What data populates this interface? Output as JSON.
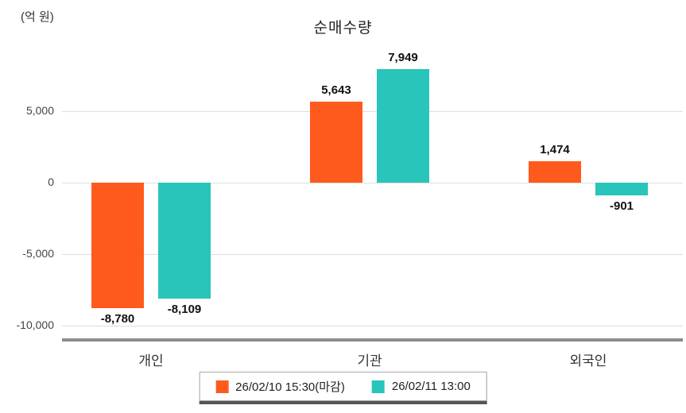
{
  "chart_data": {
    "type": "bar",
    "title": "순매수량",
    "unit_label": "(억 원)",
    "categories": [
      "개인",
      "기관",
      "외국인"
    ],
    "series": [
      {
        "name": "26/02/10 15:30(마감)",
        "color": "#ff5a1e",
        "values": [
          -8780,
          5643,
          1474
        ]
      },
      {
        "name": "26/02/11 13:00",
        "color": "#29c5ba",
        "values": [
          -8109,
          7949,
          -901
        ]
      }
    ],
    "value_labels": [
      [
        "-8,780",
        "5,643",
        "1,474"
      ],
      [
        "-8,109",
        "7,949",
        "-901"
      ]
    ],
    "y_ticks": [
      {
        "value": 5000,
        "label": "5,000"
      },
      {
        "value": 0,
        "label": "0"
      },
      {
        "value": -5000,
        "label": "-5,000"
      },
      {
        "value": -10000,
        "label": "-10,000"
      }
    ],
    "ylim": [
      -10500,
      8800
    ],
    "grid": true,
    "legend_position": "bottom"
  }
}
